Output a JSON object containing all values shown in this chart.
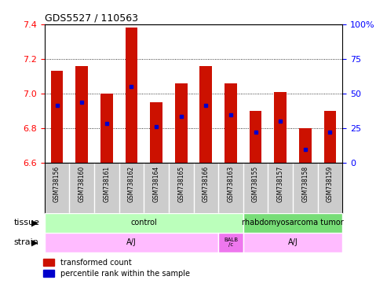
{
  "title": "GDS5527 / 110563",
  "samples": [
    "GSM738156",
    "GSM738160",
    "GSM738161",
    "GSM738162",
    "GSM738164",
    "GSM738165",
    "GSM738166",
    "GSM738163",
    "GSM738155",
    "GSM738157",
    "GSM738158",
    "GSM738159"
  ],
  "bar_tops": [
    7.13,
    7.16,
    7.0,
    7.38,
    6.95,
    7.06,
    7.16,
    7.06,
    6.9,
    7.01,
    6.8,
    6.9
  ],
  "bar_bottom": 6.6,
  "blue_dot_values": [
    6.93,
    6.95,
    6.83,
    7.04,
    6.81,
    6.87,
    6.93,
    6.88,
    6.78,
    6.84,
    6.68,
    6.78
  ],
  "ylim": [
    6.6,
    7.4
  ],
  "right_ylim": [
    0,
    100
  ],
  "right_yticks": [
    0,
    25,
    50,
    75,
    100
  ],
  "right_yticklabels": [
    "0",
    "25",
    "50",
    "75",
    "100%"
  ],
  "left_yticks": [
    6.6,
    6.8,
    7.0,
    7.2,
    7.4
  ],
  "bar_color": "#cc1100",
  "dot_color": "#0000cc",
  "plot_bg": "#ffffff",
  "sample_bg": "#cccccc",
  "tissue_light_green": "#aaffaa",
  "tissue_dark_green": "#77cc77",
  "strain_light_pink": "#ffbbff",
  "strain_dark_pink": "#dd88dd",
  "tissue_groups": [
    {
      "label": "control",
      "start": 0,
      "end": 8,
      "color": "#bbffbb"
    },
    {
      "label": "rhabdomyosarcoma tumor",
      "start": 8,
      "end": 12,
      "color": "#77dd77"
    }
  ],
  "strain_A1": {
    "label": "A/J",
    "start": 0,
    "end": 7
  },
  "strain_BALB": {
    "label": "BALB\n/c",
    "start": 7,
    "end": 8
  },
  "strain_A2": {
    "label": "A/J",
    "start": 8,
    "end": 12
  },
  "strain_light": "#ffbbff",
  "strain_dark": "#ee77ee",
  "legend_items": [
    {
      "label": "transformed count",
      "color": "#cc1100"
    },
    {
      "label": "percentile rank within the sample",
      "color": "#0000cc"
    }
  ]
}
